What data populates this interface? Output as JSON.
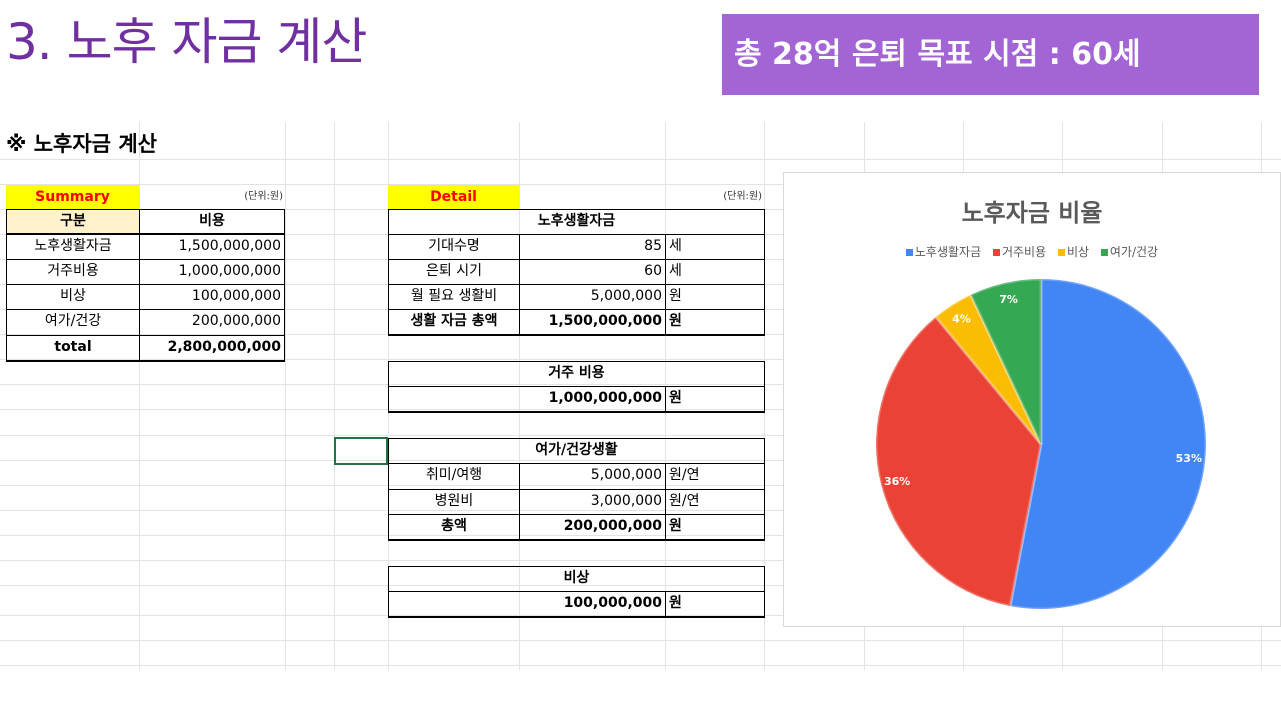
{
  "slide": {
    "title": "3. 노후 자금 계산",
    "goal_banner": "총 28억 은퇴 목표 시점 : 60세"
  },
  "section_heading": "※ 노후자금 계산",
  "summary": {
    "header": "Summary",
    "unit_note": "(단위:원)",
    "col_category": "구분",
    "col_cost": "비용",
    "rows": [
      {
        "label": "노후생활자금",
        "value": "1,500,000,000"
      },
      {
        "label": "거주비용",
        "value": "1,000,000,000"
      },
      {
        "label": "비상",
        "value": "100,000,000"
      },
      {
        "label": "여가/건강",
        "value": "200,000,000"
      }
    ],
    "total_label": "total",
    "total_value": "2,800,000,000"
  },
  "detail": {
    "header": "Detail",
    "unit_note": "(단위:원)",
    "living": {
      "title": "노후생활자금",
      "rows": [
        {
          "label": "기대수명",
          "value": "85",
          "unit": "세"
        },
        {
          "label": "은퇴 시기",
          "value": "60",
          "unit": "세"
        },
        {
          "label": "월 필요 생활비",
          "value": "5,000,000",
          "unit": "원"
        }
      ],
      "total_label": "생활 자금 총액",
      "total_value": "1,500,000,000",
      "total_unit": "원"
    },
    "housing": {
      "title": "거주 비용",
      "value": "1,000,000,000",
      "unit": "원"
    },
    "leisure": {
      "title": "여가/건강생활",
      "rows": [
        {
          "label": "취미/여행",
          "value": "5,000,000",
          "unit": "원/연"
        },
        {
          "label": "병원비",
          "value": "3,000,000",
          "unit": "원/연"
        }
      ],
      "total_label": "총액",
      "total_value": "200,000,000",
      "total_unit": "원"
    },
    "emergency": {
      "title": "비상",
      "value": "100,000,000",
      "unit": "원"
    }
  },
  "chart_data": {
    "type": "pie",
    "title": "노후자금 비율",
    "legend_position": "top",
    "categories": [
      "노후생활자금",
      "거주비용",
      "비상",
      "여가/건강"
    ],
    "values": [
      53,
      36,
      4,
      7
    ],
    "labels": [
      "53%",
      "36%",
      "4%",
      "7%"
    ],
    "colors": [
      "#4285f4",
      "#ea4335",
      "#fbbc04",
      "#34a853"
    ]
  }
}
